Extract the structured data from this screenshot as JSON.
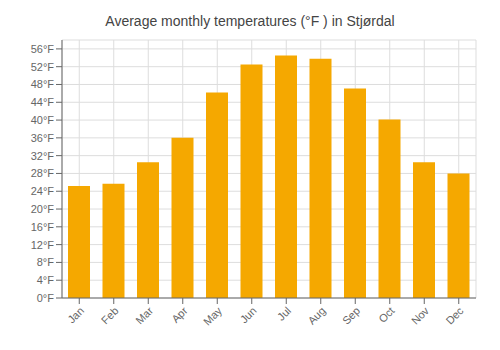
{
  "chart_data": {
    "type": "bar",
    "title": "Average monthly temperatures (°F ) in Stjørdal",
    "categories": [
      "Jan",
      "Feb",
      "Mar",
      "Apr",
      "May",
      "Jun",
      "Jul",
      "Aug",
      "Sep",
      "Oct",
      "Nov",
      "Dec"
    ],
    "values": [
      25.2,
      25.7,
      30.5,
      36.0,
      46.2,
      52.5,
      54.5,
      53.8,
      47.1,
      40.1,
      30.5,
      28.0
    ],
    "color": "#F5A800",
    "ylim": [
      0,
      58
    ],
    "yticks": [
      {
        "value": 0,
        "label": "0°F"
      },
      {
        "value": 4,
        "label": "4°F"
      },
      {
        "value": 8,
        "label": "8°F"
      },
      {
        "value": 12,
        "label": "12°F"
      },
      {
        "value": 16,
        "label": "16°F"
      },
      {
        "value": 20,
        "label": "20°F"
      },
      {
        "value": 24,
        "label": "24°F"
      },
      {
        "value": 28,
        "label": "28°F"
      },
      {
        "value": 32,
        "label": "32°F"
      },
      {
        "value": 36,
        "label": "36°F"
      },
      {
        "value": 40,
        "label": "40°F"
      },
      {
        "value": 44,
        "label": "44°F"
      },
      {
        "value": 48,
        "label": "48°F"
      },
      {
        "value": 52,
        "label": "52°F"
      },
      {
        "value": 56,
        "label": "56°F"
      }
    ],
    "grid": true
  }
}
